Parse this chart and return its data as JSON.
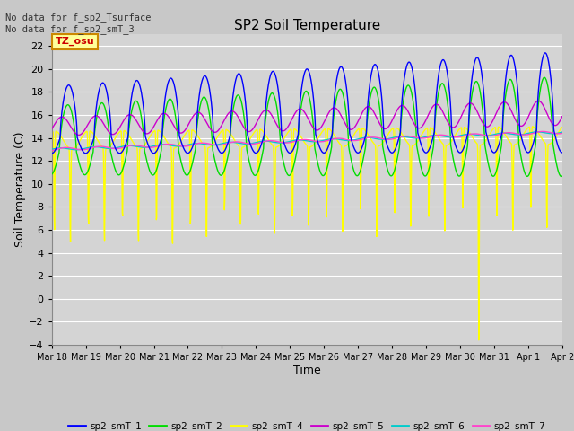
{
  "title": "SP2 Soil Temperature",
  "xlabel": "Time",
  "ylabel": "Soil Temperature (C)",
  "ylim": [
    -4,
    23
  ],
  "yticks": [
    -4,
    -2,
    0,
    2,
    4,
    6,
    8,
    10,
    12,
    14,
    16,
    18,
    20,
    22
  ],
  "annotation_text": "No data for f_sp2_Tsurface\nNo data for f_sp2_smT_3",
  "tz_label": "TZ_osu",
  "legend": [
    "sp2_smT_1",
    "sp2_smT_2",
    "sp2_smT_4",
    "sp2_smT_5",
    "sp2_smT_6",
    "sp2_smT_7"
  ],
  "line_colors": [
    "#0000ff",
    "#00dd00",
    "#ffff00",
    "#cc00cc",
    "#00cccc",
    "#ff44cc"
  ],
  "fig_facecolor": "#c8c8c8",
  "plot_facecolor": "#d4d4d4",
  "grid_color": "#ffffff",
  "n_points": 1440
}
